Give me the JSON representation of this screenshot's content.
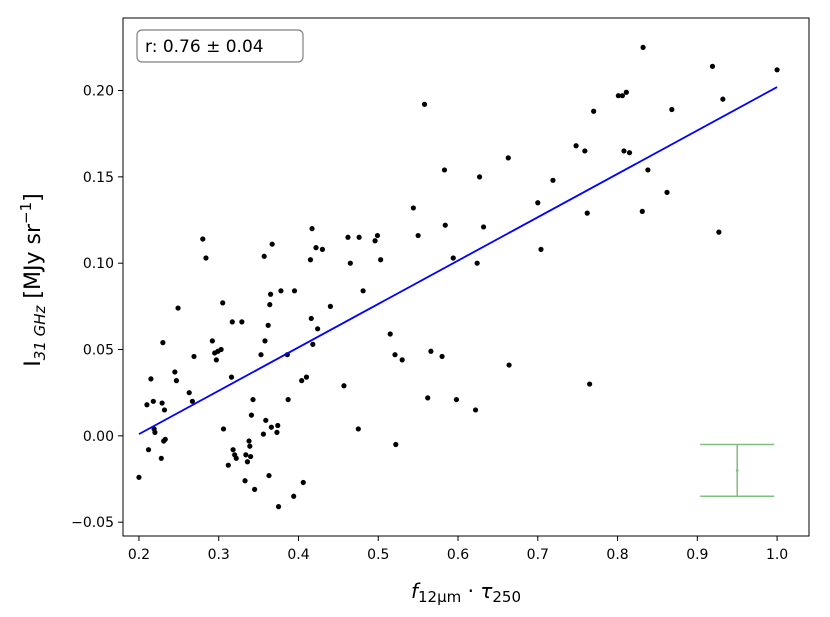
{
  "chart_data": {
    "type": "scatter",
    "title": "",
    "xlabel": {
      "main": "f",
      "main_sub": "12µm",
      "dot": " · ",
      "tau": "τ",
      "tau_sub": "250"
    },
    "ylabel": {
      "main": "I",
      "sub": "31 GHz",
      "unit": " [MJy sr",
      "unit_sup": "−1",
      "unit_end": "]"
    },
    "xlim": [
      0.18,
      1.04
    ],
    "ylim": [
      -0.058,
      0.242
    ],
    "x_ticks": [
      0.2,
      0.3,
      0.4,
      0.5,
      0.6,
      0.7,
      0.8,
      0.9,
      1.0
    ],
    "x_tick_labels": [
      "0.2",
      "0.3",
      "0.4",
      "0.5",
      "0.6",
      "0.7",
      "0.8",
      "0.9",
      "1.0"
    ],
    "y_ticks": [
      -0.05,
      0.0,
      0.05,
      0.1,
      0.15,
      0.2
    ],
    "y_tick_labels": [
      "−0.05",
      "0.00",
      "0.05",
      "0.10",
      "0.15",
      "0.20"
    ],
    "grid": false,
    "annotation": "r: 0.76 ± 0.04",
    "annotation_position": "top-left",
    "colors": {
      "points": "#000000",
      "fit": "#0000ff",
      "errorbar": "#7fbf7f"
    },
    "fit_line": {
      "x": [
        0.2,
        1.0
      ],
      "y": [
        0.001,
        0.202
      ]
    },
    "error_bar": {
      "x": 0.95,
      "y": -0.02,
      "y_low": -0.035,
      "y_high": -0.005
    },
    "points": [
      {
        "x": 0.2,
        "y": -0.024
      },
      {
        "x": 0.21,
        "y": 0.018
      },
      {
        "x": 0.212,
        "y": -0.008
      },
      {
        "x": 0.215,
        "y": 0.033
      },
      {
        "x": 0.218,
        "y": 0.02
      },
      {
        "x": 0.219,
        "y": 0.004
      },
      {
        "x": 0.22,
        "y": 0.002
      },
      {
        "x": 0.228,
        "y": -0.013
      },
      {
        "x": 0.229,
        "y": 0.019
      },
      {
        "x": 0.23,
        "y": 0.054
      },
      {
        "x": 0.231,
        "y": -0.003
      },
      {
        "x": 0.232,
        "y": 0.015
      },
      {
        "x": 0.233,
        "y": -0.002
      },
      {
        "x": 0.245,
        "y": 0.037
      },
      {
        "x": 0.247,
        "y": 0.032
      },
      {
        "x": 0.249,
        "y": 0.074
      },
      {
        "x": 0.263,
        "y": 0.025
      },
      {
        "x": 0.267,
        "y": 0.02
      },
      {
        "x": 0.269,
        "y": 0.046
      },
      {
        "x": 0.28,
        "y": 0.114
      },
      {
        "x": 0.284,
        "y": 0.103
      },
      {
        "x": 0.292,
        "y": 0.055
      },
      {
        "x": 0.295,
        "y": 0.048
      },
      {
        "x": 0.297,
        "y": 0.044
      },
      {
        "x": 0.299,
        "y": 0.049
      },
      {
        "x": 0.303,
        "y": 0.05
      },
      {
        "x": 0.305,
        "y": 0.077
      },
      {
        "x": 0.306,
        "y": 0.004
      },
      {
        "x": 0.312,
        "y": -0.017
      },
      {
        "x": 0.316,
        "y": 0.034
      },
      {
        "x": 0.317,
        "y": 0.066
      },
      {
        "x": 0.318,
        "y": -0.008
      },
      {
        "x": 0.32,
        "y": -0.011
      },
      {
        "x": 0.322,
        "y": -0.013
      },
      {
        "x": 0.329,
        "y": 0.066
      },
      {
        "x": 0.333,
        "y": -0.026
      },
      {
        "x": 0.334,
        "y": -0.011
      },
      {
        "x": 0.336,
        "y": -0.015
      },
      {
        "x": 0.338,
        "y": -0.003
      },
      {
        "x": 0.339,
        "y": -0.006
      },
      {
        "x": 0.34,
        "y": -0.012
      },
      {
        "x": 0.341,
        "y": 0.012
      },
      {
        "x": 0.343,
        "y": 0.021
      },
      {
        "x": 0.345,
        "y": -0.031
      },
      {
        "x": 0.353,
        "y": 0.047
      },
      {
        "x": 0.356,
        "y": 0.001
      },
      {
        "x": 0.357,
        "y": 0.104
      },
      {
        "x": 0.358,
        "y": 0.055
      },
      {
        "x": 0.359,
        "y": 0.009
      },
      {
        "x": 0.362,
        "y": 0.064
      },
      {
        "x": 0.363,
        "y": -0.023
      },
      {
        "x": 0.364,
        "y": 0.076
      },
      {
        "x": 0.365,
        "y": 0.082
      },
      {
        "x": 0.366,
        "y": 0.005
      },
      {
        "x": 0.367,
        "y": 0.111
      },
      {
        "x": 0.373,
        "y": 0.002
      },
      {
        "x": 0.374,
        "y": 0.006
      },
      {
        "x": 0.375,
        "y": -0.041
      },
      {
        "x": 0.378,
        "y": 0.084
      },
      {
        "x": 0.386,
        "y": 0.047
      },
      {
        "x": 0.387,
        "y": 0.021
      },
      {
        "x": 0.394,
        "y": -0.035
      },
      {
        "x": 0.395,
        "y": 0.084
      },
      {
        "x": 0.404,
        "y": 0.032
      },
      {
        "x": 0.406,
        "y": -0.027
      },
      {
        "x": 0.41,
        "y": 0.034
      },
      {
        "x": 0.415,
        "y": 0.102
      },
      {
        "x": 0.416,
        "y": 0.068
      },
      {
        "x": 0.417,
        "y": 0.12
      },
      {
        "x": 0.418,
        "y": 0.053
      },
      {
        "x": 0.422,
        "y": 0.109
      },
      {
        "x": 0.424,
        "y": 0.062
      },
      {
        "x": 0.43,
        "y": 0.108
      },
      {
        "x": 0.44,
        "y": 0.075
      },
      {
        "x": 0.457,
        "y": 0.029
      },
      {
        "x": 0.462,
        "y": 0.115
      },
      {
        "x": 0.465,
        "y": 0.1
      },
      {
        "x": 0.475,
        "y": 0.004
      },
      {
        "x": 0.476,
        "y": 0.115
      },
      {
        "x": 0.481,
        "y": 0.084
      },
      {
        "x": 0.496,
        "y": 0.113
      },
      {
        "x": 0.499,
        "y": 0.116
      },
      {
        "x": 0.503,
        "y": 0.102
      },
      {
        "x": 0.515,
        "y": 0.059
      },
      {
        "x": 0.521,
        "y": 0.047
      },
      {
        "x": 0.522,
        "y": -0.005
      },
      {
        "x": 0.53,
        "y": 0.044
      },
      {
        "x": 0.544,
        "y": 0.132
      },
      {
        "x": 0.55,
        "y": 0.116
      },
      {
        "x": 0.558,
        "y": 0.192
      },
      {
        "x": 0.562,
        "y": 0.022
      },
      {
        "x": 0.566,
        "y": 0.049
      },
      {
        "x": 0.58,
        "y": 0.046
      },
      {
        "x": 0.583,
        "y": 0.154
      },
      {
        "x": 0.584,
        "y": 0.122
      },
      {
        "x": 0.594,
        "y": 0.103
      },
      {
        "x": 0.598,
        "y": 0.021
      },
      {
        "x": 0.622,
        "y": 0.015
      },
      {
        "x": 0.624,
        "y": 0.1
      },
      {
        "x": 0.627,
        "y": 0.15
      },
      {
        "x": 0.632,
        "y": 0.121
      },
      {
        "x": 0.663,
        "y": 0.161
      },
      {
        "x": 0.664,
        "y": 0.041
      },
      {
        "x": 0.7,
        "y": 0.135
      },
      {
        "x": 0.704,
        "y": 0.108
      },
      {
        "x": 0.719,
        "y": 0.148
      },
      {
        "x": 0.748,
        "y": 0.168
      },
      {
        "x": 0.759,
        "y": 0.165
      },
      {
        "x": 0.762,
        "y": 0.129
      },
      {
        "x": 0.765,
        "y": 0.03
      },
      {
        "x": 0.77,
        "y": 0.188
      },
      {
        "x": 0.801,
        "y": 0.197
      },
      {
        "x": 0.806,
        "y": 0.197
      },
      {
        "x": 0.808,
        "y": 0.165
      },
      {
        "x": 0.811,
        "y": 0.199
      },
      {
        "x": 0.815,
        "y": 0.164
      },
      {
        "x": 0.831,
        "y": 0.13
      },
      {
        "x": 0.832,
        "y": 0.225
      },
      {
        "x": 0.838,
        "y": 0.154
      },
      {
        "x": 0.862,
        "y": 0.141
      },
      {
        "x": 0.868,
        "y": 0.189
      },
      {
        "x": 0.919,
        "y": 0.214
      },
      {
        "x": 0.927,
        "y": 0.118
      },
      {
        "x": 0.932,
        "y": 0.195
      },
      {
        "x": 1.0,
        "y": 0.212
      }
    ]
  }
}
